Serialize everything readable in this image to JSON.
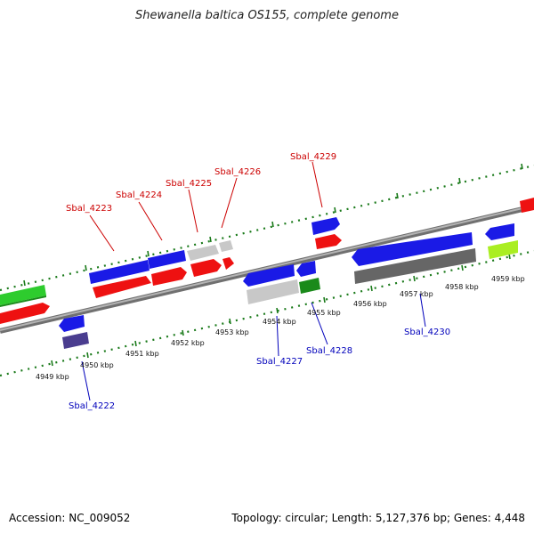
{
  "title": "Shewanella baltica OS155, complete genome",
  "footer": {
    "accession": "Accession: NC_009052",
    "topology": "Topology: circular; Length: 5,127,376 bp; Genes: 4,448"
  },
  "colors": {
    "blue": "#1a1ae6",
    "red": "#ee1111",
    "light_gray": "#c8c8c8",
    "dark_gray": "#666666",
    "green": "#2ecc2e",
    "dark_green": "#1a8a1a",
    "yellow_green": "#aaee22",
    "slate_blue": "#4a3d8f",
    "label_red": "#cc0000",
    "label_blue": "#0000bb",
    "tick_green": "#1a7a1a",
    "backbone": "#8a8a8a"
  },
  "scale_ticks": [
    "4949 kbp",
    "4950 kbp",
    "4951 kbp",
    "4952 kbp",
    "4953 kbp",
    "4954 kbp",
    "4955 kbp",
    "4956 kbp",
    "4957 kbp",
    "4958 kbp",
    "4959 kbp"
  ],
  "gene_labels": [
    {
      "name": "Sbal_4222",
      "strand": "minus"
    },
    {
      "name": "Sbal_4223",
      "strand": "plus"
    },
    {
      "name": "Sbal_4224",
      "strand": "plus"
    },
    {
      "name": "Sbal_4225",
      "strand": "plus"
    },
    {
      "name": "Sbal_4226",
      "strand": "plus"
    },
    {
      "name": "Sbal_4227",
      "strand": "minus"
    },
    {
      "name": "Sbal_4228",
      "strand": "minus"
    },
    {
      "name": "Sbal_4229",
      "strand": "plus"
    },
    {
      "name": "Sbal_4230",
      "strand": "minus"
    }
  ]
}
